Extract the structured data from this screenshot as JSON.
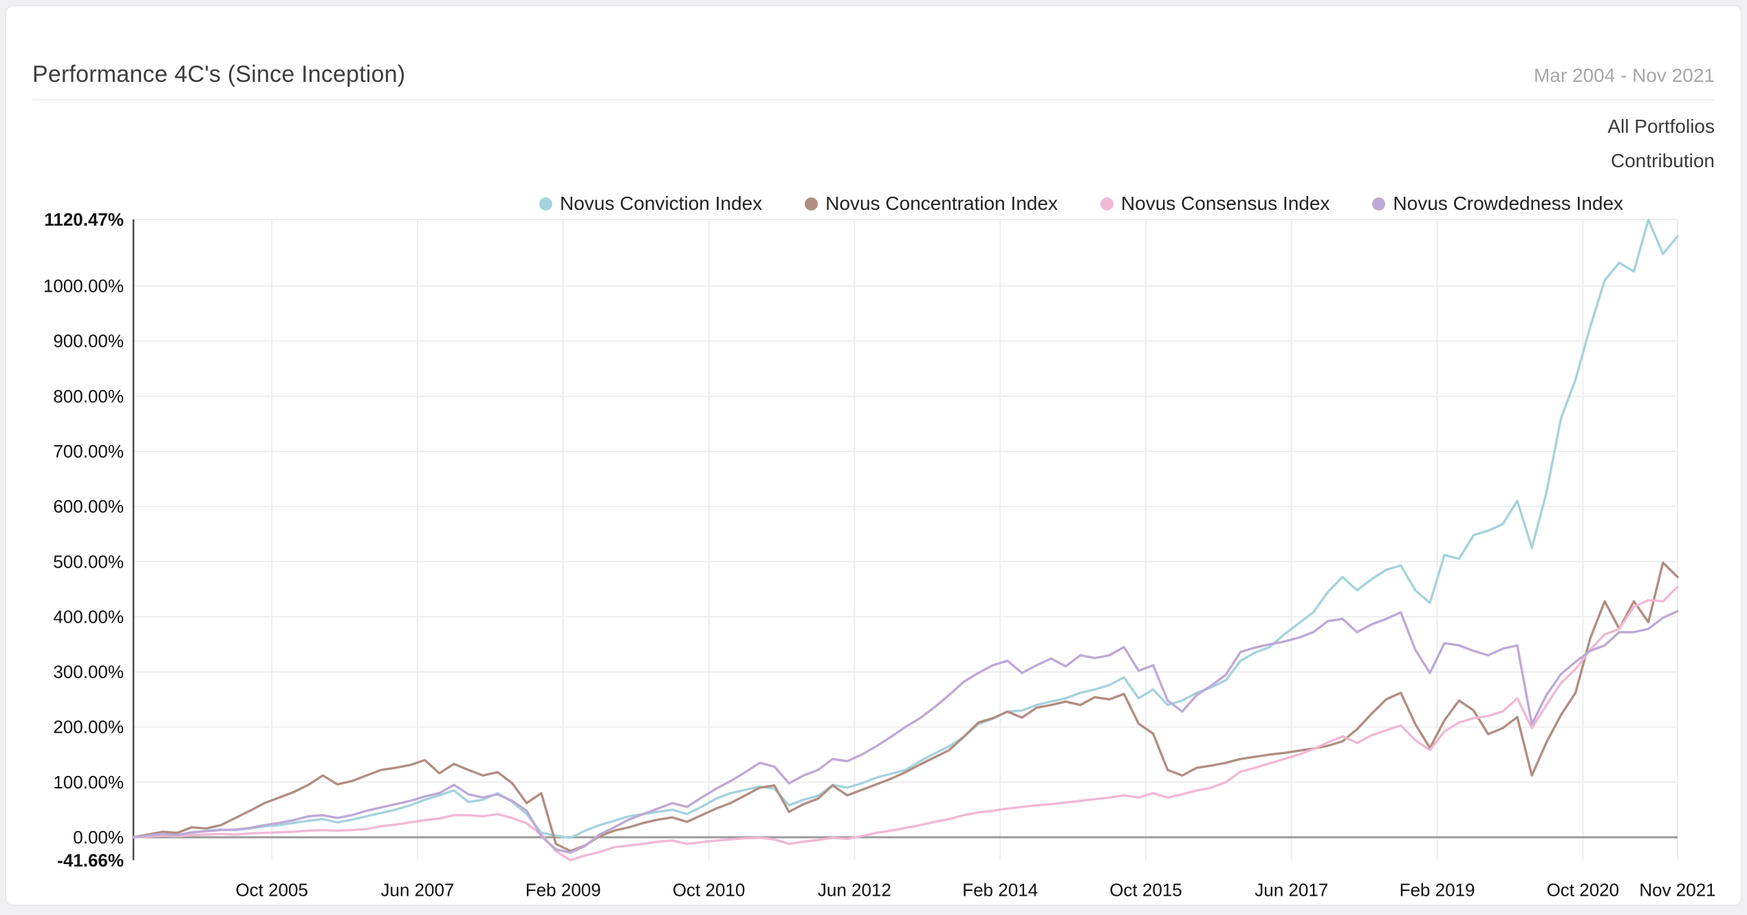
{
  "card": {
    "title": "Performance 4C's (Since Inception)",
    "date_range": "Mar 2004 - Nov 2021",
    "scope_label": "All Portfolios",
    "metric_label": "Contribution"
  },
  "chart_data": {
    "type": "line",
    "title": "Performance 4C's (Since Inception)",
    "subtitle": "Contribution, All Portfolios",
    "x_start_label": "Mar 2004",
    "x_end_label": "Nov 2021",
    "months_total": 212,
    "month_step": 2,
    "grid": true,
    "legend_position": "top",
    "ylim": [
      -41.66,
      1120.47
    ],
    "y_ticks": [
      {
        "label": "1120.47%",
        "value": 1120.47,
        "bold": true
      },
      {
        "label": "1000.00%",
        "value": 1000,
        "bold": false
      },
      {
        "label": "900.00%",
        "value": 900,
        "bold": false
      },
      {
        "label": "800.00%",
        "value": 800,
        "bold": false
      },
      {
        "label": "700.00%",
        "value": 700,
        "bold": false
      },
      {
        "label": "600.00%",
        "value": 600,
        "bold": false
      },
      {
        "label": "500.00%",
        "value": 500,
        "bold": false
      },
      {
        "label": "400.00%",
        "value": 400,
        "bold": false
      },
      {
        "label": "300.00%",
        "value": 300,
        "bold": false
      },
      {
        "label": "200.00%",
        "value": 200,
        "bold": false
      },
      {
        "label": "100.00%",
        "value": 100,
        "bold": false
      },
      {
        "label": "0.00%",
        "value": 0,
        "bold": false
      },
      {
        "label": "-41.66%",
        "value": -41.66,
        "bold": true
      }
    ],
    "x_ticks": [
      {
        "label": "Oct 2005",
        "month": 19
      },
      {
        "label": "Jun 2007",
        "month": 39
      },
      {
        "label": "Feb 2009",
        "month": 59
      },
      {
        "label": "Oct 2010",
        "month": 79
      },
      {
        "label": "Jun 2012",
        "month": 99
      },
      {
        "label": "Feb 2014",
        "month": 119
      },
      {
        "label": "Oct 2015",
        "month": 139
      },
      {
        "label": "Jun 2017",
        "month": 159
      },
      {
        "label": "Feb 2019",
        "month": 179
      },
      {
        "label": "Oct 2020",
        "month": 199
      },
      {
        "label": "Nov 2021",
        "month": 212
      }
    ],
    "colors": {
      "grid": "#EDEDEF",
      "zero_line": "#9A9A9A",
      "y_axis_line": "#4A4A4A",
      "axis_text": "#111111"
    },
    "series": [
      {
        "name": "Novus Conviction Index",
        "color": "#A6D2DE",
        "max_label": "1120.47%",
        "values": [
          0,
          2,
          5,
          3,
          8,
          12,
          14,
          13,
          16,
          20,
          22,
          26,
          30,
          33,
          27,
          32,
          38,
          44,
          50,
          58,
          68,
          76,
          85,
          64,
          68,
          80,
          64,
          42,
          8,
          3,
          -1,
          12,
          22,
          30,
          38,
          42,
          46,
          50,
          42,
          55,
          70,
          80,
          86,
          92,
          88,
          58,
          68,
          75,
          95,
          90,
          98,
          108,
          115,
          122,
          138,
          152,
          165,
          182,
          205,
          215,
          228,
          230,
          240,
          246,
          252,
          262,
          268,
          276,
          290,
          252,
          268,
          240,
          248,
          262,
          272,
          285,
          320,
          335,
          345,
          368,
          388,
          408,
          445,
          472,
          448,
          468,
          485,
          493,
          448,
          425,
          512,
          505,
          548,
          556,
          568,
          610,
          525,
          625,
          760,
          830,
          925,
          1010,
          1042,
          1026,
          1120,
          1058,
          1090
        ]
      },
      {
        "name": "Novus Concentration Index",
        "color": "#B18E81",
        "values": [
          0,
          5,
          10,
          8,
          18,
          16,
          22,
          35,
          48,
          62,
          72,
          82,
          95,
          112,
          96,
          102,
          112,
          122,
          126,
          131,
          140,
          116,
          133,
          122,
          112,
          118,
          98,
          62,
          80,
          -12,
          -25,
          -15,
          2,
          12,
          18,
          26,
          32,
          36,
          28,
          40,
          52,
          62,
          76,
          90,
          94,
          46,
          60,
          70,
          94,
          76,
          86,
          96,
          106,
          118,
          132,
          145,
          158,
          182,
          208,
          216,
          228,
          217,
          235,
          240,
          246,
          240,
          254,
          250,
          260,
          206,
          188,
          122,
          112,
          126,
          130,
          135,
          142,
          146,
          150,
          153,
          157,
          161,
          166,
          174,
          196,
          224,
          250,
          262,
          205,
          162,
          212,
          248,
          230,
          187,
          198,
          218,
          112,
          172,
          222,
          262,
          360,
          428,
          378,
          428,
          390,
          498,
          472
        ]
      },
      {
        "name": "Novus Consensus Index",
        "color": "#F1B8D4",
        "min_label": "-41.66%",
        "values": [
          0,
          1,
          3,
          2,
          4,
          5,
          6,
          5,
          7,
          8,
          9,
          10,
          12,
          13,
          12,
          13,
          15,
          20,
          23,
          27,
          31,
          34,
          40,
          40,
          38,
          42,
          35,
          25,
          5,
          -25,
          -41.66,
          -33,
          -27,
          -18,
          -15,
          -12,
          -8,
          -6,
          -12,
          -9,
          -6,
          -4,
          -2,
          -1,
          -4,
          -12,
          -8,
          -5,
          -1,
          -3,
          2,
          8,
          12,
          17,
          22,
          28,
          33,
          40,
          45,
          48,
          52,
          55,
          58,
          60,
          63,
          66,
          69,
          72,
          76,
          72,
          80,
          72,
          78,
          85,
          90,
          100,
          119,
          126,
          134,
          142,
          150,
          160,
          172,
          183,
          171,
          185,
          194,
          203,
          176,
          158,
          192,
          208,
          216,
          220,
          228,
          252,
          198,
          240,
          280,
          305,
          340,
          368,
          378,
          418,
          430,
          428,
          454
        ]
      },
      {
        "name": "Novus Crowdedness Index",
        "color": "#BDA9D7",
        "values": [
          0,
          3,
          6,
          4,
          9,
          11,
          13,
          14,
          17,
          22,
          26,
          31,
          38,
          40,
          35,
          40,
          48,
          54,
          60,
          66,
          74,
          80,
          95,
          78,
          72,
          78,
          66,
          48,
          2,
          -22,
          -28,
          -16,
          5,
          18,
          32,
          42,
          52,
          62,
          55,
          72,
          88,
          102,
          118,
          135,
          128,
          98,
          112,
          122,
          142,
          138,
          150,
          165,
          182,
          200,
          216,
          236,
          258,
          282,
          298,
          312,
          320,
          298,
          312,
          324,
          310,
          330,
          325,
          330,
          345,
          302,
          312,
          248,
          228,
          258,
          275,
          295,
          336,
          344,
          350,
          355,
          362,
          372,
          392,
          396,
          372,
          386,
          396,
          408,
          340,
          298,
          352,
          348,
          338,
          330,
          342,
          348,
          205,
          258,
          296,
          318,
          338,
          348,
          372,
          372,
          378,
          398,
          410
        ]
      }
    ]
  }
}
